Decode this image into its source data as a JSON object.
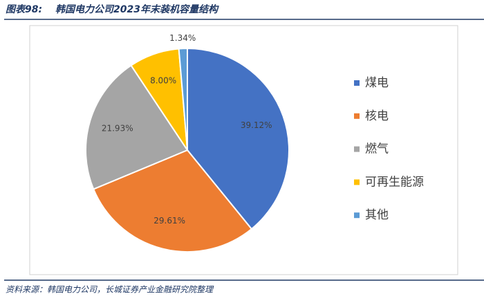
{
  "chart_data": {
    "type": "pie",
    "figure_label": "图表98:",
    "title": "韩国电力公司2023年末装机容量结构",
    "source": "资料来源：韩国电力公司，长城证券产业金融研究院整理",
    "categories": [
      "煤电",
      "核电",
      "燃气",
      "可再生能源",
      "其他"
    ],
    "values": [
      39.12,
      29.61,
      21.93,
      8.0,
      1.34
    ],
    "value_labels": [
      "39.12%",
      "29.61%",
      "21.93%",
      "8.00%",
      "1.34%"
    ],
    "colors": [
      "#4472c4",
      "#ed7d31",
      "#a5a5a5",
      "#ffc000",
      "#5b9bd5"
    ],
    "legend": "right"
  }
}
